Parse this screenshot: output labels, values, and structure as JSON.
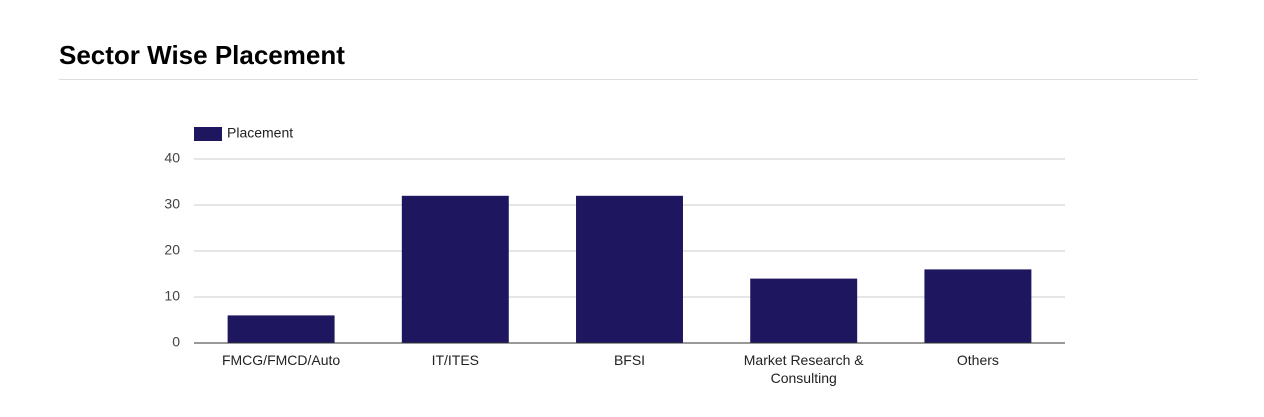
{
  "chart_data": {
    "type": "bar",
    "title": "Sector Wise Placement",
    "categories": [
      "FMCG/FMCD/Auto",
      "IT/ITES",
      "BFSI",
      "Market Research & Consulting",
      "Others"
    ],
    "series": [
      {
        "name": "Placement",
        "color": "#1e1760",
        "values": [
          6,
          32,
          32,
          14,
          16
        ]
      }
    ],
    "ylim": [
      0,
      40
    ],
    "yticks": [
      0,
      10,
      20,
      30,
      40
    ],
    "grid": true,
    "legend": "top-left"
  }
}
